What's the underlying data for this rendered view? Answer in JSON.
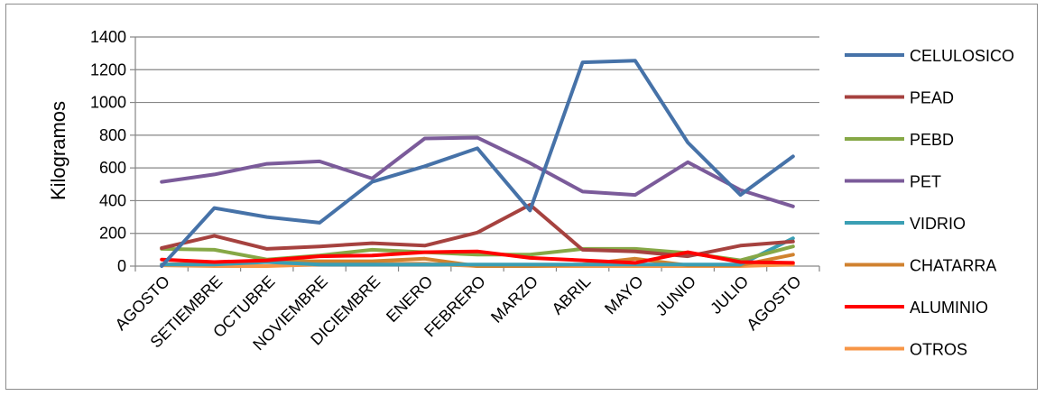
{
  "chart_data": {
    "type": "line",
    "title": "",
    "xlabel": "",
    "ylabel": "Kilogramos",
    "ylim": [
      0,
      1400
    ],
    "yticks": [
      0,
      200,
      400,
      600,
      800,
      1000,
      1200,
      1400
    ],
    "grid": "horizontal",
    "legend_position": "right",
    "categories": [
      "AGOSTO",
      "SETIEMBRE",
      "OCTUBRE",
      "NOVIEMBRE",
      "DICIEMBRE",
      "ENERO",
      "FEBRERO",
      "MARZO",
      "ABRIL",
      "MAYO",
      "JUNIO",
      "JULIO",
      "AGOSTO"
    ],
    "series": [
      {
        "name": "CELULOSICO",
        "color": "#4672a8",
        "values": [
          0,
          355,
          300,
          265,
          515,
          610,
          720,
          340,
          1245,
          1255,
          755,
          435,
          670
        ]
      },
      {
        "name": "PEAD",
        "color": "#a6423f",
        "values": [
          110,
          185,
          105,
          120,
          140,
          125,
          205,
          375,
          100,
          90,
          60,
          125,
          150
        ]
      },
      {
        "name": "PEBD",
        "color": "#86a846",
        "values": [
          105,
          100,
          40,
          65,
          100,
          85,
          70,
          70,
          105,
          105,
          80,
          35,
          120
        ]
      },
      {
        "name": "PET",
        "color": "#7b5b9a",
        "values": [
          515,
          560,
          625,
          640,
          535,
          780,
          785,
          630,
          455,
          435,
          635,
          465,
          365
        ]
      },
      {
        "name": "VIDRIO",
        "color": "#3a9fb4",
        "values": [
          10,
          10,
          25,
          10,
          10,
          10,
          10,
          10,
          10,
          10,
          10,
          10,
          170
        ]
      },
      {
        "name": "CHATARRA",
        "color": "#d0822f",
        "values": [
          10,
          15,
          30,
          30,
          30,
          45,
          0,
          0,
          10,
          45,
          5,
          5,
          70
        ]
      },
      {
        "name": "ALUMINIO",
        "color": "#ff0000",
        "values": [
          40,
          25,
          35,
          60,
          65,
          85,
          90,
          50,
          35,
          20,
          85,
          25,
          20
        ]
      },
      {
        "name": "OTROS",
        "color": "#f79646",
        "values": [
          5,
          0,
          0,
          10,
          15,
          15,
          0,
          0,
          0,
          0,
          0,
          0,
          10
        ]
      }
    ]
  }
}
